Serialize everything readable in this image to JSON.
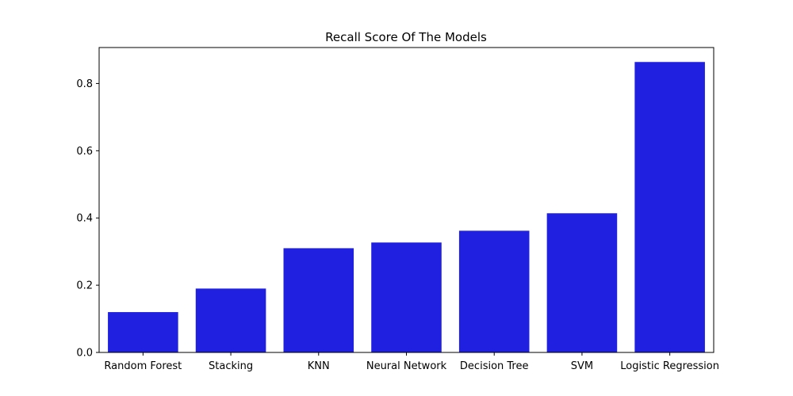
{
  "chart_data": {
    "type": "bar",
    "title": "Recall Score Of The Models",
    "xlabel": "",
    "ylabel": "",
    "categories": [
      "Random Forest",
      "Stacking",
      "KNN",
      "Neural Network",
      "Decision Tree",
      "SVM",
      "Logistic Regression"
    ],
    "values": [
      0.12,
      0.19,
      0.31,
      0.327,
      0.362,
      0.414,
      0.864
    ],
    "ylim": [
      0,
      0.907
    ],
    "yticks": [
      0.0,
      0.2,
      0.4,
      0.6,
      0.8
    ],
    "ytick_labels": [
      "0.0",
      "0.2",
      "0.4",
      "0.6",
      "0.8"
    ],
    "bar_color": "#2020e0",
    "grid": false,
    "legend": "none"
  }
}
